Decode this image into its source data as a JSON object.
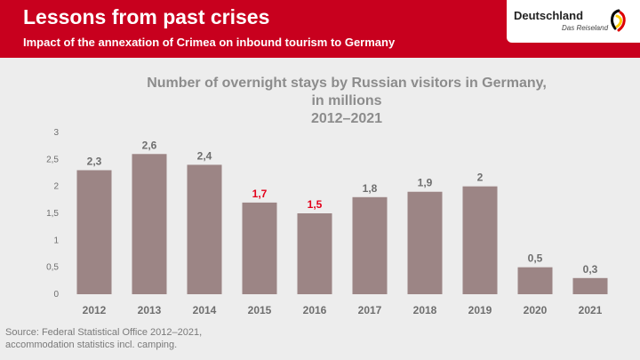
{
  "header": {
    "title": "Lessons from past crises",
    "subtitle": "Impact of the annexation of Crimea on inbound tourism to Germany"
  },
  "logo": {
    "name": "Deutschland",
    "tagline": "Das Reiseland"
  },
  "chart_data": {
    "type": "bar",
    "title_lines": [
      "Number of overnight stays by Russian visitors in Germany,",
      "in millions",
      "2012–2021"
    ],
    "categories": [
      "2012",
      "2013",
      "2014",
      "2015",
      "2016",
      "2017",
      "2018",
      "2019",
      "2020",
      "2021"
    ],
    "values": [
      2.3,
      2.6,
      2.4,
      1.7,
      1.5,
      1.8,
      1.9,
      2,
      0.5,
      0.3
    ],
    "value_labels": [
      "2,3",
      "2,6",
      "2,4",
      "1,7",
      "1,5",
      "1,8",
      "1,9",
      "2",
      "0,5",
      "0,3"
    ],
    "highlighted_labels": [
      "2015",
      "2016"
    ],
    "yticks": [
      0,
      0.5,
      1,
      1.5,
      2,
      2.5,
      3
    ],
    "ytick_labels": [
      "0",
      "0,5",
      "1",
      "1,5",
      "2",
      "2,5",
      "3"
    ],
    "ylim": [
      0,
      3
    ],
    "grid": false,
    "bar_color": "#9c8585",
    "label_color": "#6e6e6e",
    "highlight_color": "#e3001b"
  },
  "source": {
    "line1": "Source: Federal Statistical Office 2012–2021,",
    "line2": "accommodation statistics incl. camping."
  }
}
